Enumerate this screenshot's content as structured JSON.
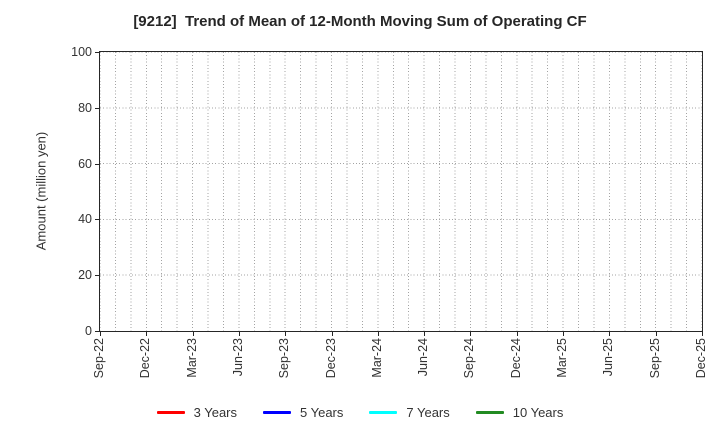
{
  "chart_data": {
    "type": "line",
    "title": "[9212]  Trend of Mean of 12-Month Moving Sum of Operating CF",
    "ylabel": "Amount (million yen)",
    "xlabel": "",
    "ylim": [
      0,
      100
    ],
    "yticks": [
      0,
      20,
      40,
      60,
      80,
      100
    ],
    "categories": [
      "Sep-22",
      "Dec-22",
      "Mar-23",
      "Jun-23",
      "Sep-23",
      "Dec-23",
      "Mar-24",
      "Jun-24",
      "Sep-24",
      "Dec-24",
      "Mar-25",
      "Jun-25",
      "Sep-25",
      "Dec-25"
    ],
    "months_per_category": 3,
    "grid": {
      "visible": true,
      "style": "dotted",
      "vertical": "monthly-minor",
      "horizontal": "major-only"
    },
    "legend_position": "bottom-center",
    "series": [
      {
        "name": "3 Years",
        "color": "#ff0000",
        "values": []
      },
      {
        "name": "5 Years",
        "color": "#0000ff",
        "values": []
      },
      {
        "name": "7 Years",
        "color": "#00ffff",
        "values": []
      },
      {
        "name": "10 Years",
        "color": "#228b22",
        "values": []
      }
    ],
    "plotted_data_note": "no series data visible in plotted range (empty axes)"
  },
  "colors": {
    "background": "#ffffff",
    "axis": "#262626",
    "grid": "#a3a3a3",
    "text": "#333333"
  }
}
